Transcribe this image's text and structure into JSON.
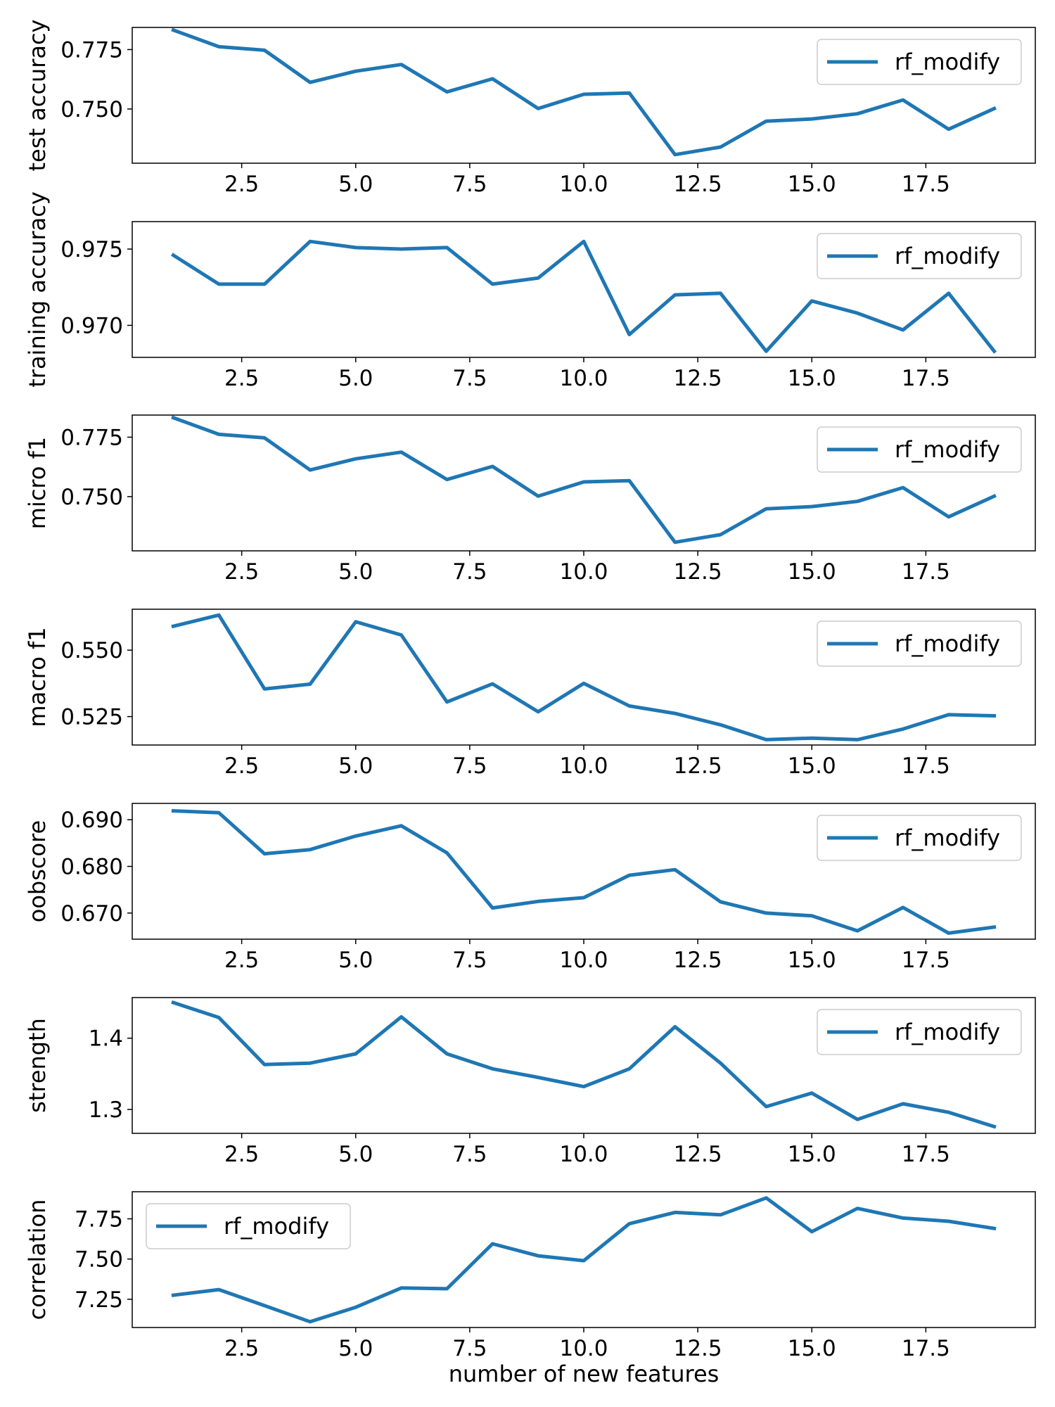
{
  "chart_data": [
    {
      "type": "line",
      "ylabel": "test accuracy",
      "xlabel": "",
      "legend": "top-right",
      "x_ticks": [
        "2.5",
        "5.0",
        "7.5",
        "10.0",
        "12.5",
        "15.0",
        "17.5"
      ],
      "y_ticks": [
        "0.750",
        "0.775"
      ],
      "ylim": [
        0.7272,
        0.7843
      ],
      "series": [
        {
          "name": "rf_modify",
          "x": [
            1,
            2,
            3,
            4,
            5,
            6,
            7,
            8,
            9,
            10,
            11,
            12,
            13,
            14,
            15,
            16,
            17,
            18,
            19
          ],
          "values": [
            0.7832,
            0.7762,
            0.7747,
            0.7612,
            0.7659,
            0.7687,
            0.7572,
            0.7627,
            0.7502,
            0.7562,
            0.7567,
            0.7308,
            0.734,
            0.7449,
            0.7458,
            0.748,
            0.7538,
            0.7415,
            0.7502
          ]
        }
      ]
    },
    {
      "type": "line",
      "ylabel": "training accuracy",
      "xlabel": "",
      "legend": "top-right",
      "x_ticks": [
        "2.5",
        "5.0",
        "7.5",
        "10.0",
        "12.5",
        "15.0",
        "17.5"
      ],
      "y_ticks": [
        "0.970",
        "0.975"
      ],
      "ylim": [
        0.9679,
        0.9768
      ],
      "series": [
        {
          "name": "rf_modify",
          "x": [
            1,
            2,
            3,
            4,
            5,
            6,
            7,
            8,
            9,
            10,
            11,
            12,
            13,
            14,
            15,
            16,
            17,
            18,
            19
          ],
          "values": [
            0.9746,
            0.9727,
            0.9727,
            0.9755,
            0.9751,
            0.975,
            0.9751,
            0.9727,
            0.9731,
            0.9755,
            0.9694,
            0.972,
            0.9721,
            0.9683,
            0.9716,
            0.9708,
            0.9697,
            0.9721,
            0.9683
          ]
        }
      ]
    },
    {
      "type": "line",
      "ylabel": "micro f1",
      "xlabel": "",
      "legend": "top-right",
      "x_ticks": [
        "2.5",
        "5.0",
        "7.5",
        "10.0",
        "12.5",
        "15.0",
        "17.5"
      ],
      "y_ticks": [
        "0.750",
        "0.775"
      ],
      "ylim": [
        0.7272,
        0.7843
      ],
      "series": [
        {
          "name": "rf_modify",
          "x": [
            1,
            2,
            3,
            4,
            5,
            6,
            7,
            8,
            9,
            10,
            11,
            12,
            13,
            14,
            15,
            16,
            17,
            18,
            19
          ],
          "values": [
            0.7832,
            0.7762,
            0.7747,
            0.7612,
            0.7659,
            0.7687,
            0.7572,
            0.7627,
            0.7502,
            0.7562,
            0.7567,
            0.7308,
            0.734,
            0.7449,
            0.7458,
            0.748,
            0.7538,
            0.7415,
            0.7502
          ]
        }
      ]
    },
    {
      "type": "line",
      "ylabel": "macro f1",
      "xlabel": "",
      "legend": "top-right",
      "x_ticks": [
        "2.5",
        "5.0",
        "7.5",
        "10.0",
        "12.5",
        "15.0",
        "17.5"
      ],
      "y_ticks": [
        "0.525",
        "0.550"
      ],
      "ylim": [
        0.5143,
        0.5654
      ],
      "series": [
        {
          "name": "rf_modify",
          "x": [
            1,
            2,
            3,
            4,
            5,
            6,
            7,
            8,
            9,
            10,
            11,
            12,
            13,
            14,
            15,
            16,
            17,
            18,
            19
          ],
          "values": [
            0.559,
            0.5632,
            0.5354,
            0.5372,
            0.5607,
            0.5557,
            0.5305,
            0.5373,
            0.5268,
            0.5375,
            0.529,
            0.5262,
            0.5219,
            0.5163,
            0.5169,
            0.5163,
            0.5203,
            0.5257,
            0.5253
          ]
        }
      ]
    },
    {
      "type": "line",
      "ylabel": "oobscore",
      "xlabel": "",
      "legend": "top-right",
      "x_ticks": [
        "2.5",
        "5.0",
        "7.5",
        "10.0",
        "12.5",
        "15.0",
        "17.5"
      ],
      "y_ticks": [
        "0.670",
        "0.680",
        "0.690"
      ],
      "ylim": [
        0.6644,
        0.6935
      ],
      "series": [
        {
          "name": "rf_modify",
          "x": [
            1,
            2,
            3,
            4,
            5,
            6,
            7,
            8,
            9,
            10,
            11,
            12,
            13,
            14,
            15,
            16,
            17,
            18,
            19
          ],
          "values": [
            0.6919,
            0.6915,
            0.6827,
            0.6836,
            0.6865,
            0.6887,
            0.6829,
            0.6711,
            0.6725,
            0.6733,
            0.6781,
            0.6793,
            0.6724,
            0.67,
            0.6694,
            0.6662,
            0.6712,
            0.6657,
            0.667
          ]
        }
      ]
    },
    {
      "type": "line",
      "ylabel": "strength",
      "xlabel": "",
      "legend": "top-right",
      "x_ticks": [
        "2.5",
        "5.0",
        "7.5",
        "10.0",
        "12.5",
        "15.0",
        "17.5"
      ],
      "y_ticks": [
        "1.3",
        "1.4"
      ],
      "ylim": [
        1.2665,
        1.457
      ],
      "series": [
        {
          "name": "rf_modify",
          "x": [
            1,
            2,
            3,
            4,
            5,
            6,
            7,
            8,
            9,
            10,
            11,
            12,
            13,
            14,
            15,
            16,
            17,
            18,
            19
          ],
          "values": [
            1.45,
            1.429,
            1.363,
            1.365,
            1.378,
            1.43,
            1.378,
            1.357,
            1.345,
            1.332,
            1.357,
            1.416,
            1.365,
            1.304,
            1.323,
            1.286,
            1.308,
            1.296,
            1.276
          ]
        }
      ]
    },
    {
      "type": "line",
      "ylabel": "correlation",
      "xlabel": "number of new features",
      "legend": "top-left",
      "x_ticks": [
        "2.5",
        "5.0",
        "7.5",
        "10.0",
        "12.5",
        "15.0",
        "17.5"
      ],
      "y_ticks": [
        "7.25",
        "7.50",
        "7.75"
      ],
      "ylim": [
        7.0741,
        7.9186
      ],
      "series": [
        {
          "name": "rf_modify",
          "x": [
            1,
            2,
            3,
            4,
            5,
            6,
            7,
            8,
            9,
            10,
            11,
            12,
            13,
            14,
            15,
            16,
            17,
            18,
            19
          ],
          "values": [
            7.275,
            7.31,
            7.21,
            7.11,
            7.2,
            7.32,
            7.315,
            7.595,
            7.52,
            7.49,
            7.72,
            7.79,
            7.775,
            7.88,
            7.67,
            7.815,
            7.755,
            7.735,
            7.69
          ]
        }
      ]
    }
  ],
  "colors": {
    "series": "#1f77b4",
    "axes": "#000000",
    "legend_border": "#cccccc"
  }
}
